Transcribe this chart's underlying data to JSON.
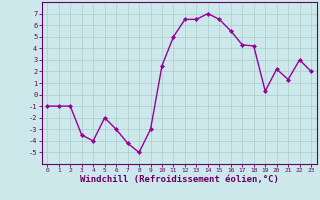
{
  "x": [
    0,
    1,
    2,
    3,
    4,
    5,
    6,
    7,
    8,
    9,
    10,
    11,
    12,
    13,
    14,
    15,
    16,
    17,
    18,
    19,
    20,
    21,
    22,
    23
  ],
  "y": [
    -1.0,
    -1.0,
    -1.0,
    -3.5,
    -4.0,
    -2.0,
    -3.0,
    -4.2,
    -5.0,
    -3.0,
    2.5,
    5.0,
    6.5,
    6.5,
    7.0,
    6.5,
    5.5,
    4.3,
    4.2,
    0.3,
    2.2,
    1.3,
    3.0,
    2.0
  ],
  "line_color": "#990099",
  "marker": "D",
  "marker_size": 2.0,
  "line_width": 1.0,
  "xlabel": "Windchill (Refroidissement éolien,°C)",
  "xlabel_fontsize": 6.5,
  "bg_color": "#cce8ea",
  "grid_color": "#aacccc",
  "tick_color": "#660066",
  "border_color": "#660066",
  "ylim": [
    -6,
    8
  ],
  "xlim": [
    -0.5,
    23.5
  ],
  "yticks": [
    -5,
    -4,
    -3,
    -2,
    -1,
    0,
    1,
    2,
    3,
    4,
    5,
    6,
    7
  ],
  "xticks": [
    0,
    1,
    2,
    3,
    4,
    5,
    6,
    7,
    8,
    9,
    10,
    11,
    12,
    13,
    14,
    15,
    16,
    17,
    18,
    19,
    20,
    21,
    22,
    23
  ]
}
